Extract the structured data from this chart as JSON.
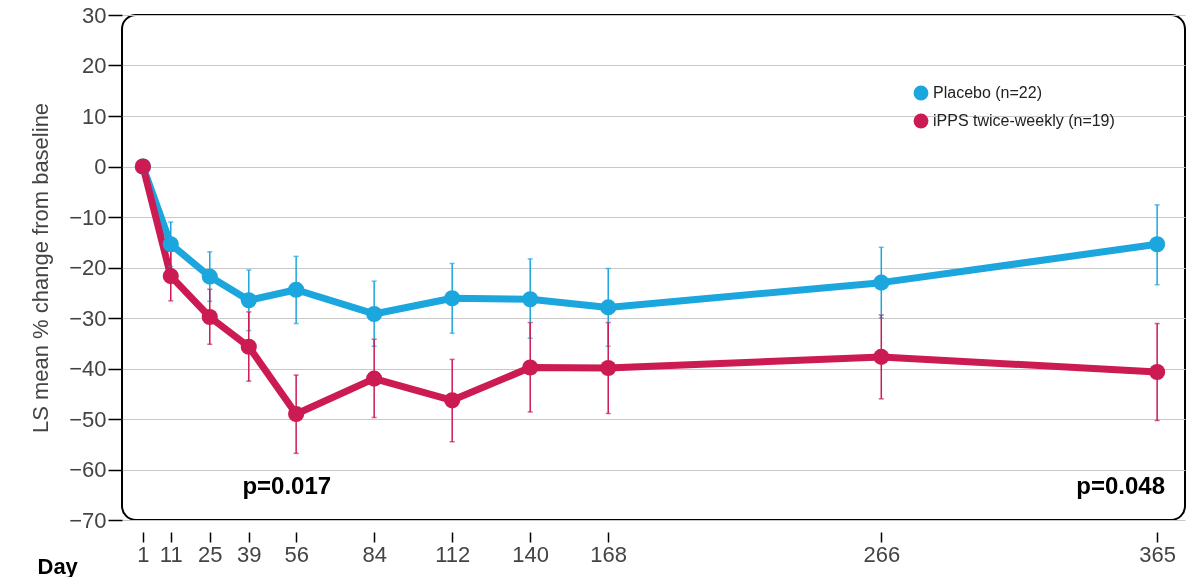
{
  "chart_data": {
    "type": "line",
    "xlabel": "Day",
    "ylabel": "LS mean % change from baseline",
    "x": [
      1,
      11,
      25,
      39,
      56,
      84,
      112,
      140,
      168,
      266,
      365
    ],
    "series": [
      {
        "name": "Placebo (n=22)",
        "color": "#1ba6dd",
        "values": [
          0,
          -15.4,
          -21.8,
          -26.5,
          -24.4,
          -29.2,
          -26.1,
          -26.3,
          -27.9,
          -23.0,
          -15.4
        ],
        "errors": [
          null,
          [
            -19.8,
            -11.0
          ],
          [
            -26.7,
            -16.9
          ],
          [
            -32.5,
            -20.5
          ],
          [
            -31.1,
            -17.8
          ],
          [
            -35.6,
            -22.7
          ],
          [
            -33.0,
            -19.2
          ],
          [
            -34.0,
            -18.3
          ],
          [
            -35.6,
            -20.2
          ],
          [
            -30.0,
            -16.0
          ],
          [
            -23.4,
            -7.6
          ]
        ]
      },
      {
        "name": "iPPS twice-weekly (n=19)",
        "color": "#cc1a52",
        "values": [
          0,
          -21.7,
          -29.8,
          -35.7,
          -49.0,
          -42.0,
          -46.3,
          -39.8,
          -39.9,
          -37.7,
          -40.7
        ],
        "errors": [
          null,
          [
            -26.6,
            -16.8
          ],
          [
            -35.2,
            -24.3
          ],
          [
            -42.5,
            -28.8
          ],
          [
            -56.8,
            -41.3
          ],
          [
            -49.7,
            -34.2
          ],
          [
            -54.5,
            -38.2
          ],
          [
            -48.6,
            -30.9
          ],
          [
            -48.9,
            -30.9
          ],
          [
            -46.0,
            -29.4
          ],
          [
            -50.3,
            -31.1
          ]
        ]
      }
    ],
    "xlim": [
      -6.5,
      375
    ],
    "xticks": [
      1,
      11,
      25,
      39,
      56,
      84,
      112,
      140,
      168,
      266,
      365
    ],
    "ylim": [
      -70,
      30
    ],
    "yticks": [
      30,
      20,
      10,
      0,
      -10,
      -20,
      -30,
      -40,
      -50,
      -60,
      -70
    ],
    "annotations": [
      "p=0.017",
      "p=0.048"
    ],
    "grid": "y",
    "legend": "top right",
    "marker": "circle",
    "line_style": "solid"
  }
}
